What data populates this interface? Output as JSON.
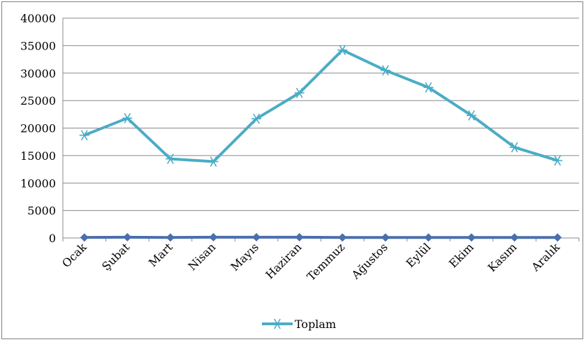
{
  "chart_data": {
    "type": "line",
    "categories": [
      "Ocak",
      "Şubat",
      "Mart",
      "Nisan",
      "Mayıs",
      "Haziran",
      "Temmuz",
      "Ağustos",
      "Eylül",
      "Ekim",
      "Kasım",
      "Aralık"
    ],
    "series": [
      {
        "name": "",
        "color": "#4a6fae",
        "marker": "diamond",
        "values": [
          100,
          150,
          100,
          150,
          150,
          150,
          100,
          100,
          100,
          100,
          100,
          100
        ]
      },
      {
        "name": "Toplam",
        "color": "#4bacc6",
        "marker": "asterisk",
        "values": [
          18700,
          21800,
          14400,
          13900,
          21700,
          26400,
          34200,
          30500,
          27400,
          22300,
          16500,
          14100
        ]
      }
    ],
    "yticks": [
      "0",
      "5000",
      "10000",
      "15000",
      "20000",
      "25000",
      "30000",
      "35000",
      "40000"
    ],
    "ylim": [
      0,
      40000
    ],
    "grid": true,
    "legend_position": "bottom",
    "legend": [
      "Toplam"
    ]
  }
}
